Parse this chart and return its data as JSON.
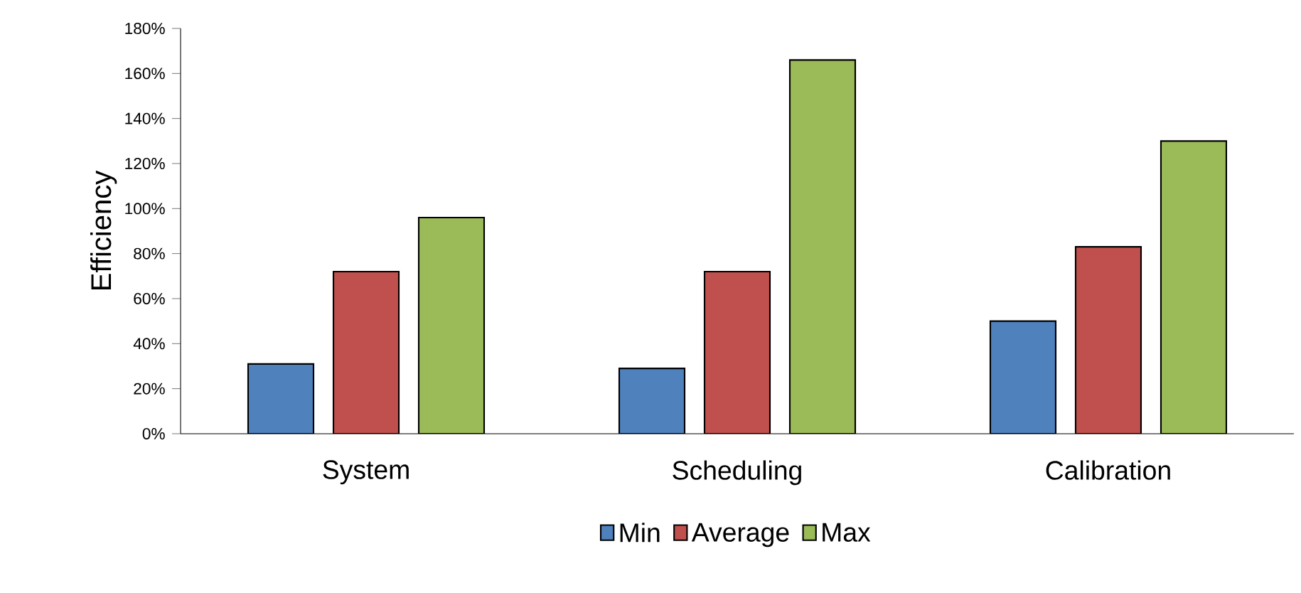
{
  "chart_data": {
    "type": "bar",
    "ylabel": "Efficiency",
    "categories": [
      "System",
      "Scheduling",
      "Calibration"
    ],
    "series": [
      {
        "name": "Min",
        "color": "#4f81bd",
        "values": [
          31,
          29,
          50
        ]
      },
      {
        "name": "Average",
        "color": "#c0504d",
        "values": [
          72,
          72,
          83
        ]
      },
      {
        "name": "Max",
        "color": "#9bbb59",
        "values": [
          96,
          166,
          130
        ]
      }
    ],
    "ylim": [
      0,
      180
    ],
    "yticks": [
      {
        "value": 0,
        "label": "0%"
      },
      {
        "value": 20,
        "label": "20%"
      },
      {
        "value": 40,
        "label": "40%"
      },
      {
        "value": 60,
        "label": "60%"
      },
      {
        "value": 80,
        "label": "80%"
      },
      {
        "value": 100,
        "label": "100%"
      },
      {
        "value": 120,
        "label": "120%"
      },
      {
        "value": 140,
        "label": "140%"
      },
      {
        "value": 160,
        "label": "160%"
      },
      {
        "value": 180,
        "label": "180%"
      }
    ],
    "grid": false,
    "legend": "bottom"
  }
}
